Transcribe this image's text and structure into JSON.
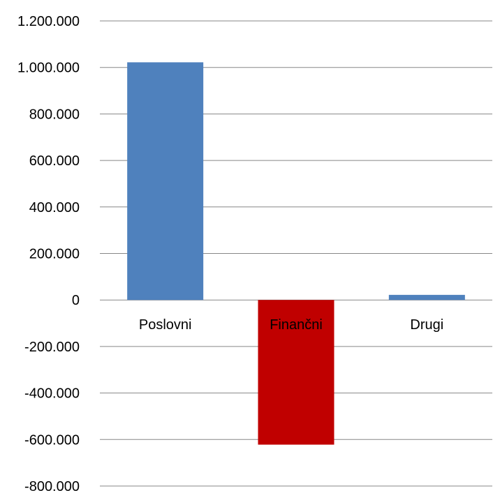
{
  "chart_data": {
    "type": "bar",
    "categories": [
      "Poslovni",
      "Finančni",
      "Drugi"
    ],
    "values": [
      1022000,
      -622000,
      22000
    ],
    "colors": [
      "#4f81bd",
      "#c00000",
      "#4f81bd"
    ],
    "ylim": [
      -800000,
      1200000
    ],
    "yticks": [
      1200000,
      1000000,
      800000,
      600000,
      400000,
      200000,
      0,
      -200000,
      -400000,
      -600000,
      -800000
    ],
    "ytick_labels": [
      "1.200.000",
      "1.000.000",
      "800.000",
      "600.000",
      "400.000",
      "200.000",
      "0",
      "-200.000",
      "-400.000",
      "-600.000",
      "-800.000"
    ],
    "grid": true,
    "legend": false,
    "title": "",
    "xlabel": "",
    "ylabel": ""
  }
}
